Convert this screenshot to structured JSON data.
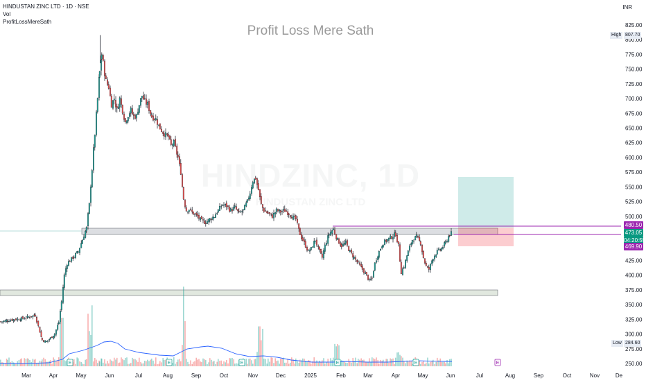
{
  "legend": {
    "symbol_line": "HINDUSTAN ZINC LTD · 1D · NSE",
    "volume_label": "Vol",
    "indicator_label": "ProfitLossMereSath"
  },
  "currency": "INR",
  "indicator_title": "Profit Loss Mere Sath",
  "watermark": {
    "symbol": "HINDZINC, 1D",
    "name": "HINDUSTAN ZINC LTD"
  },
  "price_scale": [
    "825.00",
    "800.00",
    "775.00",
    "750.00",
    "725.00",
    "700.00",
    "675.00",
    "650.00",
    "625.00",
    "600.00",
    "575.00",
    "550.00",
    "525.00",
    "500.00",
    "475.00",
    "450.00",
    "425.00",
    "400.00",
    "375.00",
    "350.00",
    "325.00",
    "300.00",
    "275.00",
    "250.00"
  ],
  "time_scale": [
    "Mar",
    "Apr",
    "May",
    "Jun",
    "Jul",
    "Aug",
    "Sep",
    "Oct",
    "Nov",
    "Dec",
    "2025",
    "Feb",
    "Mar",
    "Apr",
    "May",
    "Jun",
    "Jul",
    "Aug",
    "Sep",
    "Oct",
    "Nov",
    "De"
  ],
  "high_marker": {
    "label": "High",
    "value": "807.70"
  },
  "low_marker": {
    "label": "Low",
    "value": "284.60"
  },
  "price_tags": {
    "upper": "480.50",
    "last": "473.05",
    "countdown": "04:20:55",
    "lower": "469.90"
  },
  "earnings_marker": "E",
  "colors": {
    "up": "#26a69a",
    "down": "#ef5350",
    "wick": "#131722",
    "zone_fill": "#b2b5be",
    "volume_ma": "#2962ff",
    "target_zone": "#26a69a",
    "stop_zone": "#f23645",
    "level_line": "#9c27b0",
    "last_price": "#089981"
  }
}
